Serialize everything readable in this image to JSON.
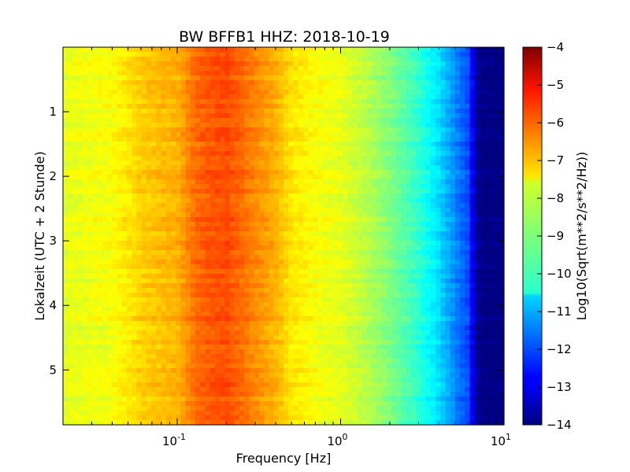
{
  "chart_data": {
    "type": "heatmap",
    "title": "BW BFFB1 HHZ: 2018-10-19",
    "xlabel": "Frequency [Hz]",
    "ylabel": "Lokalzeit (UTC + 2 Stunde)",
    "colorbar_label": "Log10(Sqrt(m**2/s**2/Hz))",
    "x_scale": "log",
    "xlim": [
      0.02,
      10
    ],
    "ylim": [
      0,
      5.85
    ],
    "y_inverted": true,
    "clim": [
      -14,
      -4
    ],
    "colormap": "jet",
    "x_ticks": [
      {
        "value": 0.1,
        "base": "10",
        "exp": "-1"
      },
      {
        "value": 1,
        "base": "10",
        "exp": "0"
      },
      {
        "value": 10,
        "base": "10",
        "exp": "1"
      }
    ],
    "y_ticks": [
      {
        "value": 1,
        "label": "1"
      },
      {
        "value": 2,
        "label": "2"
      },
      {
        "value": 3,
        "label": "3"
      },
      {
        "value": 4,
        "label": "4"
      },
      {
        "value": 5,
        "label": "5"
      }
    ],
    "colorbar_ticks": [
      {
        "value": -4,
        "label": "−4"
      },
      {
        "value": -5,
        "label": "−5"
      },
      {
        "value": -6,
        "label": "−6"
      },
      {
        "value": -7,
        "label": "−7"
      },
      {
        "value": -8,
        "label": "−8"
      },
      {
        "value": -9,
        "label": "−9"
      },
      {
        "value": -10,
        "label": "−10"
      },
      {
        "value": -11,
        "label": "−11"
      },
      {
        "value": -12,
        "label": "−12"
      },
      {
        "value": -13,
        "label": "−13"
      },
      {
        "value": -14,
        "label": "−14"
      }
    ],
    "frequency_profile": {
      "freq_hz": [
        0.02,
        0.04,
        0.06,
        0.08,
        0.1,
        0.13,
        0.16,
        0.2,
        0.25,
        0.3,
        0.4,
        0.5,
        0.7,
        1.0,
        1.5,
        2.0,
        3.0,
        4.0,
        5.0,
        6.0,
        7.0,
        10.0
      ],
      "log10_amplitude": [
        -8.0,
        -7.8,
        -7.3,
        -7.1,
        -7.0,
        -6.3,
        -6.1,
        -6.0,
        -6.3,
        -6.6,
        -7.0,
        -7.5,
        -7.8,
        -8.0,
        -8.5,
        -9.0,
        -9.8,
        -10.6,
        -11.4,
        -12.0,
        -14.0,
        -14.0
      ]
    }
  }
}
